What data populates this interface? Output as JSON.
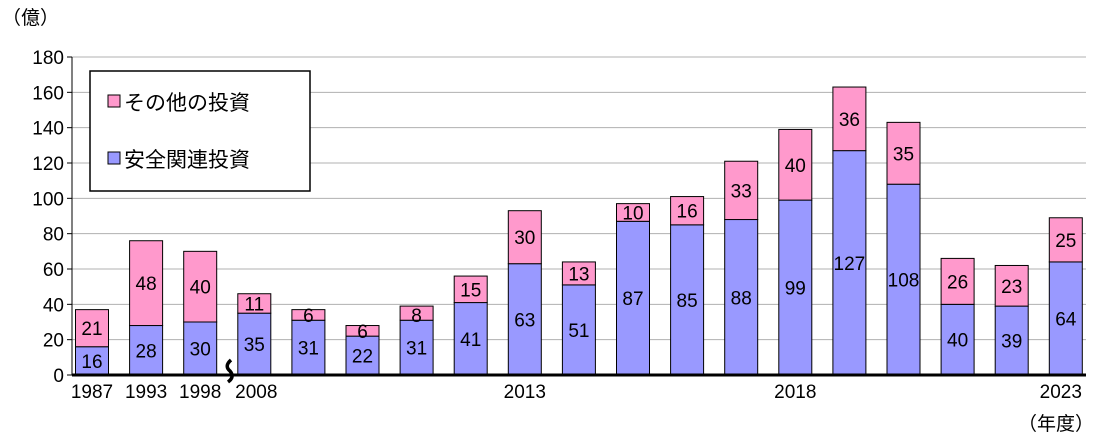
{
  "chart_data": {
    "type": "bar",
    "stacked": true,
    "ylabel": "（億）",
    "xlabel": "（年度）",
    "ylim": [
      0,
      180
    ],
    "yticks": [
      0,
      20,
      40,
      60,
      80,
      100,
      120,
      140,
      160,
      180
    ],
    "grid": true,
    "legend_position": "top-left",
    "categories": [
      "1987",
      "1993",
      "1998",
      "2008",
      "2009",
      "2010",
      "2011",
      "2012",
      "2013",
      "2014",
      "2015",
      "2016",
      "2017",
      "2018",
      "2019",
      "2020",
      "2021",
      "2022",
      "2023"
    ],
    "tick_labels": [
      "1987",
      "1993",
      "1998",
      "2008",
      "",
      "",
      "",
      "",
      "2013",
      "",
      "",
      "",
      "",
      "2018",
      "",
      "",
      "",
      "",
      "2023"
    ],
    "series": [
      {
        "name": "安全関連投資",
        "color": "#9999ff",
        "values": [
          16,
          28,
          30,
          35,
          31,
          22,
          31,
          41,
          63,
          51,
          87,
          85,
          88,
          99,
          127,
          108,
          40,
          39,
          64
        ]
      },
      {
        "name": "その他の投資",
        "color": "#ff99cc",
        "values": [
          21,
          48,
          40,
          11,
          6,
          6,
          8,
          15,
          30,
          13,
          10,
          16,
          33,
          40,
          36,
          35,
          26,
          23,
          25
        ]
      }
    ],
    "axis_break_after": "1998"
  }
}
